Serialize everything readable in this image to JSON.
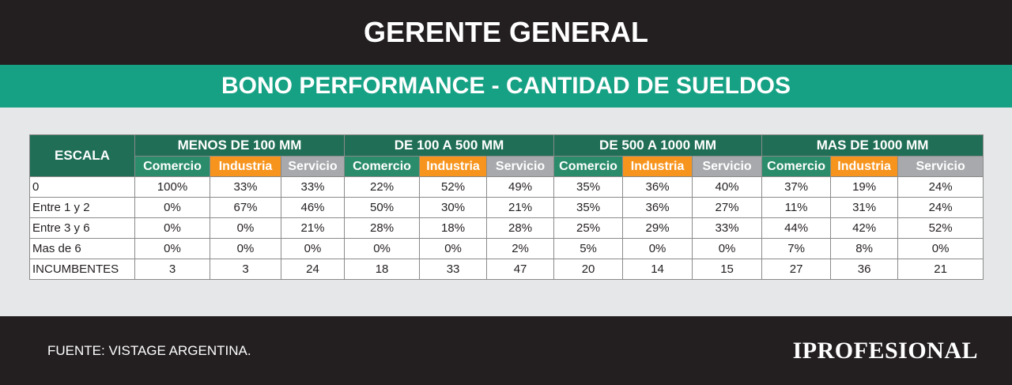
{
  "header": {
    "title": "GERENTE GENERAL",
    "subtitle": "BONO PERFORMANCE - CANTIDAD DE SUELDOS"
  },
  "table": {
    "corner": "ESCALA",
    "groups": [
      {
        "label": "MENOS DE 100 MM",
        "columns": [
          "Comercio",
          "Industria",
          "Servicio"
        ]
      },
      {
        "label": "DE 100 A 500 MM",
        "columns": [
          "Comercio",
          "Industria",
          "Servicio"
        ]
      },
      {
        "label": "DE 500 A 1000 MM",
        "columns": [
          "Comercio",
          "Industria",
          "Servicio"
        ]
      },
      {
        "label": "MAS DE 1000 MM",
        "columns": [
          "Comercio",
          "Industria",
          "Servicio"
        ]
      }
    ],
    "rows": [
      {
        "label": "0",
        "cells": [
          "100%",
          "33%",
          "33%",
          "22%",
          "52%",
          "49%",
          "35%",
          "36%",
          "40%",
          "37%",
          "19%",
          "24%"
        ]
      },
      {
        "label": "Entre 1 y 2",
        "cells": [
          "0%",
          "67%",
          "46%",
          "50%",
          "30%",
          "21%",
          "35%",
          "36%",
          "27%",
          "11%",
          "31%",
          "24%"
        ]
      },
      {
        "label": "Entre 3 y 6",
        "cells": [
          "0%",
          "0%",
          "21%",
          "28%",
          "18%",
          "28%",
          "25%",
          "29%",
          "33%",
          "44%",
          "42%",
          "52%"
        ]
      },
      {
        "label": "Mas de 6",
        "cells": [
          "0%",
          "0%",
          "0%",
          "0%",
          "0%",
          "2%",
          "5%",
          "0%",
          "0%",
          "7%",
          "8%",
          "0%"
        ]
      },
      {
        "label": "INCUMBENTES",
        "cells": [
          3,
          3,
          24,
          18,
          33,
          47,
          20,
          14,
          15,
          27,
          36,
          21
        ]
      }
    ]
  },
  "footer": {
    "source": "FUENTE: VISTAGE ARGENTINA.",
    "logo": "IPROFESIONAL"
  }
}
